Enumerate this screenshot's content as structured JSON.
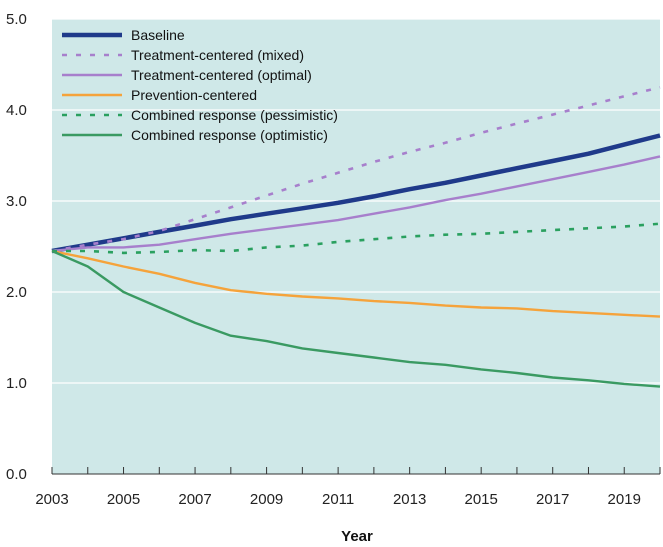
{
  "chart_data": {
    "type": "line",
    "title": "",
    "xlabel": "Year",
    "ylabel": "",
    "xlim": [
      2003,
      2020
    ],
    "ylim": [
      0,
      5
    ],
    "x_ticks": [
      "2003",
      "2005",
      "2007",
      "2009",
      "2011",
      "2013",
      "2015",
      "2017",
      "2019"
    ],
    "y_ticks": [
      "0.0",
      "1.0",
      "2.0",
      "3.0",
      "4.0",
      "5.0"
    ],
    "grid": "horizontal",
    "legend_position": "top-left",
    "background_color": "#cfe8e8",
    "x": [
      2003,
      2004,
      2005,
      2006,
      2007,
      2008,
      2009,
      2010,
      2011,
      2012,
      2013,
      2014,
      2015,
      2016,
      2017,
      2018,
      2019,
      2020
    ],
    "series": [
      {
        "name": "Baseline",
        "color": "#1f3a8a",
        "style": "solid-thick",
        "values": [
          2.45,
          2.52,
          2.59,
          2.66,
          2.73,
          2.8,
          2.86,
          2.92,
          2.98,
          3.05,
          3.13,
          3.2,
          3.28,
          3.36,
          3.44,
          3.52,
          3.62,
          3.72
        ]
      },
      {
        "name": "Treatment-centered (mixed)",
        "color": "#a77fcc",
        "style": "dashed",
        "values": [
          2.45,
          2.52,
          2.58,
          2.67,
          2.8,
          2.93,
          3.06,
          3.19,
          3.31,
          3.43,
          3.54,
          3.64,
          3.75,
          3.85,
          3.95,
          4.05,
          4.15,
          4.25
        ]
      },
      {
        "name": "Treatment-centered (optimal)",
        "color": "#a77fcc",
        "style": "solid",
        "values": [
          2.45,
          2.49,
          2.49,
          2.52,
          2.58,
          2.64,
          2.69,
          2.74,
          2.79,
          2.86,
          2.93,
          3.01,
          3.08,
          3.16,
          3.24,
          3.32,
          3.4,
          3.49
        ]
      },
      {
        "name": "Prevention-centered",
        "color": "#f5a33b",
        "style": "solid",
        "values": [
          2.45,
          2.37,
          2.28,
          2.2,
          2.1,
          2.02,
          1.98,
          1.95,
          1.93,
          1.9,
          1.88,
          1.85,
          1.83,
          1.82,
          1.79,
          1.77,
          1.75,
          1.73
        ]
      },
      {
        "name": "Combined response (pessimistic)",
        "color": "#2aa05f",
        "style": "dashed",
        "values": [
          2.45,
          2.45,
          2.43,
          2.44,
          2.46,
          2.45,
          2.49,
          2.51,
          2.55,
          2.58,
          2.61,
          2.63,
          2.64,
          2.66,
          2.68,
          2.7,
          2.72,
          2.75
        ]
      },
      {
        "name": "Combined response (optimistic)",
        "color": "#3a9a62",
        "style": "solid",
        "values": [
          2.45,
          2.28,
          2.0,
          1.83,
          1.66,
          1.52,
          1.46,
          1.38,
          1.33,
          1.28,
          1.23,
          1.2,
          1.15,
          1.11,
          1.06,
          1.03,
          0.99,
          0.96
        ]
      }
    ]
  }
}
